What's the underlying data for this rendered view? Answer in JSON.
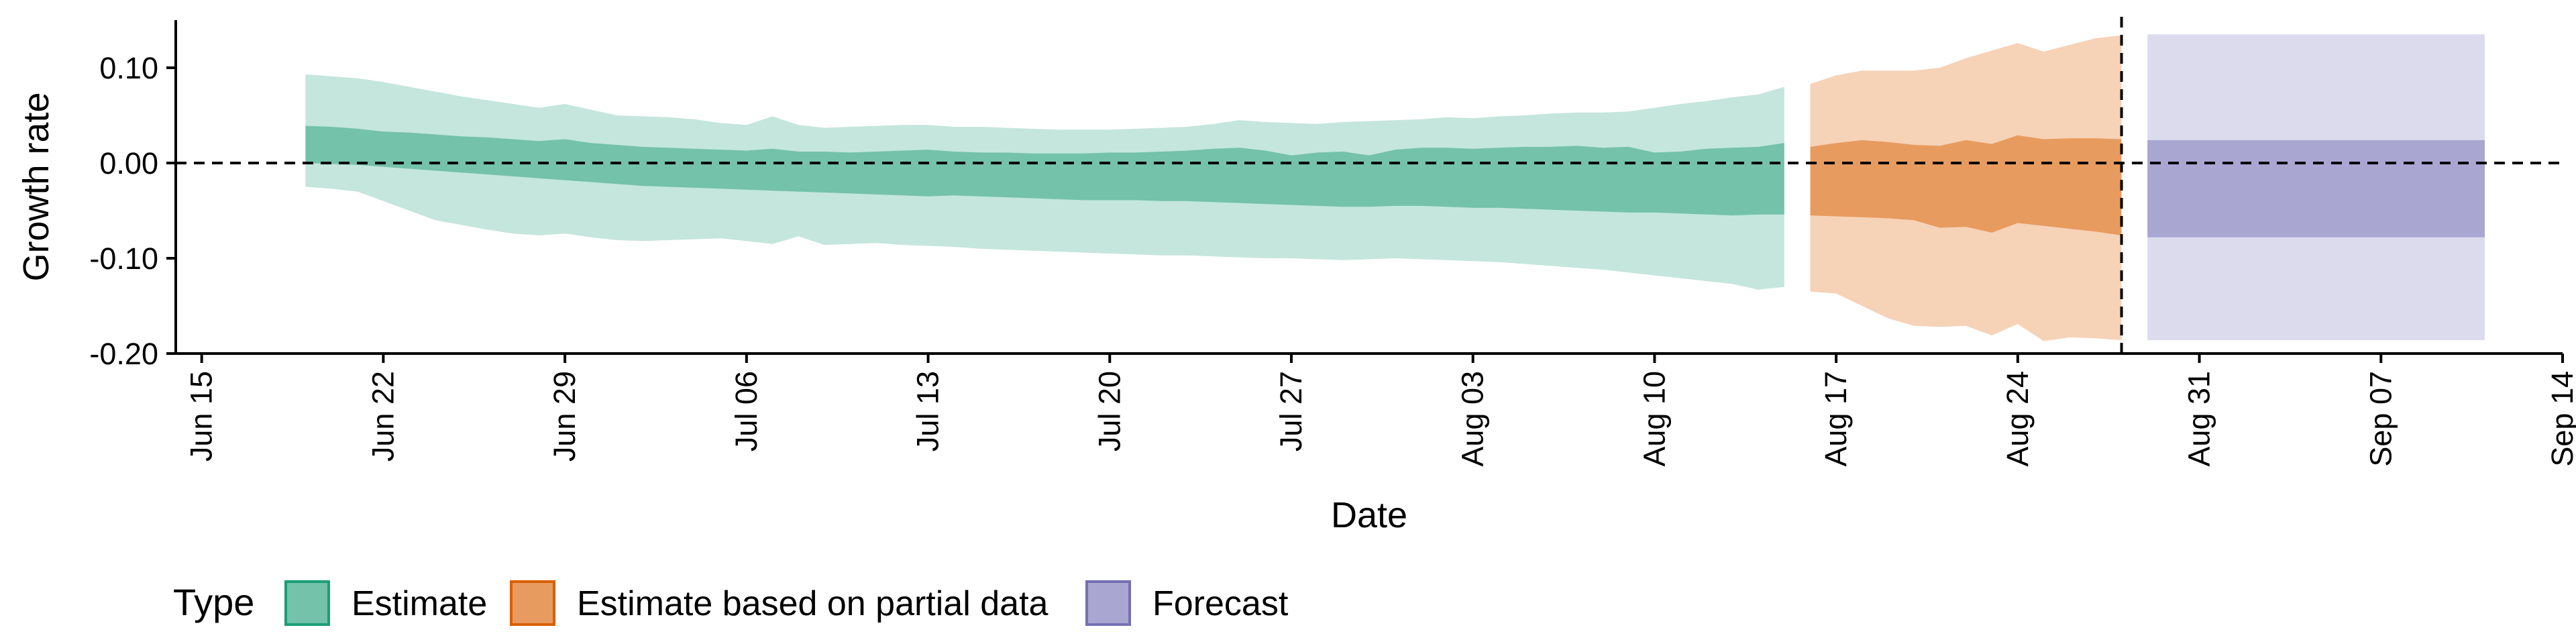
{
  "chart_data": {
    "type": "area",
    "xlabel": "Date",
    "ylabel": "Growth rate",
    "xlim": [
      "2020-06-14",
      "2020-09-14"
    ],
    "ylim": [
      -0.2,
      0.15
    ],
    "x_ticks": [
      "Jun 15",
      "Jun 22",
      "Jun 29",
      "Jul 06",
      "Jul 13",
      "Jul 20",
      "Jul 27",
      "Aug 03",
      "Aug 10",
      "Aug 17",
      "Aug 24",
      "Aug 31",
      "Sep 07",
      "Sep 14"
    ],
    "y_ticks": [
      0.1,
      0.0,
      -0.1,
      -0.2
    ],
    "y_tick_labels": [
      "0.10",
      "0.00",
      "-0.10",
      "-0.20"
    ],
    "reference_lines": {
      "horizontal_y": 0.0,
      "vertical_x": "2020-08-28"
    },
    "grid": false,
    "legend": {
      "title": "Type",
      "position": "bottom-left",
      "entries": [
        {
          "label": "Estimate",
          "fill": "#73c2a9",
          "stroke": "#1b9e77"
        },
        {
          "label": "Estimate based on partial data",
          "fill": "#e89b5f",
          "stroke": "#d95f02"
        },
        {
          "label": "Forecast",
          "fill": "#a9a6d2",
          "stroke": "#7570b3"
        }
      ]
    },
    "series": [
      {
        "name": "Estimate",
        "inner_fill": "#73c2a9",
        "outer_fill": "#c5e6dc",
        "x": [
          "2020-06-19",
          "2020-06-20",
          "2020-06-21",
          "2020-06-22",
          "2020-06-23",
          "2020-06-24",
          "2020-06-25",
          "2020-06-26",
          "2020-06-27",
          "2020-06-28",
          "2020-06-29",
          "2020-06-30",
          "2020-07-01",
          "2020-07-02",
          "2020-07-03",
          "2020-07-04",
          "2020-07-05",
          "2020-07-06",
          "2020-07-07",
          "2020-07-08",
          "2020-07-09",
          "2020-07-10",
          "2020-07-11",
          "2020-07-12",
          "2020-07-13",
          "2020-07-14",
          "2020-07-15",
          "2020-07-16",
          "2020-07-17",
          "2020-07-18",
          "2020-07-19",
          "2020-07-20",
          "2020-07-21",
          "2020-07-22",
          "2020-07-23",
          "2020-07-24",
          "2020-07-25",
          "2020-07-26",
          "2020-07-27",
          "2020-07-28",
          "2020-07-29",
          "2020-07-30",
          "2020-07-31",
          "2020-08-01",
          "2020-08-02",
          "2020-08-03",
          "2020-08-04",
          "2020-08-05",
          "2020-08-06",
          "2020-08-07",
          "2020-08-08",
          "2020-08-09",
          "2020-08-10",
          "2020-08-11",
          "2020-08-12",
          "2020-08-13",
          "2020-08-14",
          "2020-08-15"
        ],
        "outer_upper": [
          0.093,
          0.091,
          0.089,
          0.085,
          0.08,
          0.075,
          0.07,
          0.066,
          0.062,
          0.058,
          0.062,
          0.056,
          0.05,
          0.049,
          0.048,
          0.046,
          0.042,
          0.04,
          0.049,
          0.04,
          0.037,
          0.038,
          0.039,
          0.04,
          0.04,
          0.038,
          0.038,
          0.037,
          0.036,
          0.035,
          0.035,
          0.035,
          0.036,
          0.037,
          0.038,
          0.041,
          0.045,
          0.043,
          0.042,
          0.041,
          0.043,
          0.044,
          0.045,
          0.046,
          0.048,
          0.047,
          0.049,
          0.05,
          0.052,
          0.053,
          0.053,
          0.054,
          0.058,
          0.062,
          0.065,
          0.069,
          0.072,
          0.08
        ],
        "inner_upper": [
          0.039,
          0.038,
          0.036,
          0.033,
          0.032,
          0.03,
          0.028,
          0.027,
          0.025,
          0.023,
          0.025,
          0.021,
          0.019,
          0.017,
          0.016,
          0.015,
          0.014,
          0.013,
          0.015,
          0.012,
          0.012,
          0.011,
          0.012,
          0.013,
          0.014,
          0.012,
          0.011,
          0.011,
          0.01,
          0.01,
          0.01,
          0.011,
          0.011,
          0.012,
          0.013,
          0.015,
          0.016,
          0.013,
          0.008,
          0.011,
          0.012,
          0.008,
          0.014,
          0.016,
          0.016,
          0.015,
          0.016,
          0.017,
          0.017,
          0.018,
          0.016,
          0.017,
          0.011,
          0.012,
          0.015,
          0.016,
          0.017,
          0.021
        ],
        "inner_lower": [
          0.0,
          -0.001,
          -0.002,
          -0.004,
          -0.006,
          -0.008,
          -0.01,
          -0.012,
          -0.014,
          -0.016,
          -0.018,
          -0.02,
          -0.022,
          -0.024,
          -0.025,
          -0.026,
          -0.027,
          -0.028,
          -0.029,
          -0.03,
          -0.031,
          -0.032,
          -0.033,
          -0.034,
          -0.035,
          -0.034,
          -0.035,
          -0.036,
          -0.037,
          -0.038,
          -0.039,
          -0.039,
          -0.039,
          -0.04,
          -0.04,
          -0.041,
          -0.042,
          -0.043,
          -0.044,
          -0.045,
          -0.046,
          -0.046,
          -0.045,
          -0.045,
          -0.046,
          -0.047,
          -0.047,
          -0.048,
          -0.049,
          -0.05,
          -0.051,
          -0.052,
          -0.052,
          -0.053,
          -0.054,
          -0.055,
          -0.054,
          -0.054
        ],
        "outer_lower": [
          -0.025,
          -0.027,
          -0.03,
          -0.04,
          -0.05,
          -0.06,
          -0.065,
          -0.07,
          -0.074,
          -0.076,
          -0.074,
          -0.078,
          -0.081,
          -0.082,
          -0.081,
          -0.08,
          -0.079,
          -0.082,
          -0.085,
          -0.077,
          -0.086,
          -0.085,
          -0.084,
          -0.086,
          -0.087,
          -0.088,
          -0.09,
          -0.091,
          -0.092,
          -0.093,
          -0.094,
          -0.095,
          -0.096,
          -0.097,
          -0.097,
          -0.098,
          -0.099,
          -0.1,
          -0.1,
          -0.101,
          -0.102,
          -0.101,
          -0.1,
          -0.101,
          -0.102,
          -0.103,
          -0.104,
          -0.106,
          -0.108,
          -0.11,
          -0.112,
          -0.115,
          -0.118,
          -0.121,
          -0.124,
          -0.127,
          -0.133,
          -0.13
        ]
      },
      {
        "name": "Estimate based on partial data",
        "inner_fill": "#e89b5f",
        "outer_fill": "#f6d2b7",
        "x": [
          "2020-08-16",
          "2020-08-17",
          "2020-08-18",
          "2020-08-19",
          "2020-08-20",
          "2020-08-21",
          "2020-08-22",
          "2020-08-23",
          "2020-08-24",
          "2020-08-25",
          "2020-08-26",
          "2020-08-27",
          "2020-08-28"
        ],
        "outer_upper": [
          0.083,
          0.092,
          0.097,
          0.097,
          0.097,
          0.1,
          0.11,
          0.118,
          0.126,
          0.117,
          0.124,
          0.131,
          0.134
        ],
        "inner_upper": [
          0.017,
          0.021,
          0.024,
          0.022,
          0.019,
          0.018,
          0.024,
          0.02,
          0.029,
          0.025,
          0.026,
          0.026,
          0.025
        ],
        "inner_lower": [
          -0.055,
          -0.056,
          -0.057,
          -0.058,
          -0.06,
          -0.068,
          -0.067,
          -0.073,
          -0.063,
          -0.066,
          -0.069,
          -0.072,
          -0.076
        ],
        "outer_lower": [
          -0.135,
          -0.137,
          -0.15,
          -0.163,
          -0.171,
          -0.172,
          -0.171,
          -0.181,
          -0.169,
          -0.187,
          -0.183,
          -0.184,
          -0.186
        ]
      },
      {
        "name": "Forecast",
        "inner_fill": "#a9a6d2",
        "outer_fill": "#dcdbee",
        "x": [
          "2020-08-29",
          "2020-09-11"
        ],
        "outer_upper": [
          0.135,
          0.135
        ],
        "inner_upper": [
          0.024,
          0.024
        ],
        "inner_lower": [
          -0.078,
          -0.078
        ],
        "outer_lower": [
          -0.186,
          -0.186
        ]
      }
    ]
  }
}
